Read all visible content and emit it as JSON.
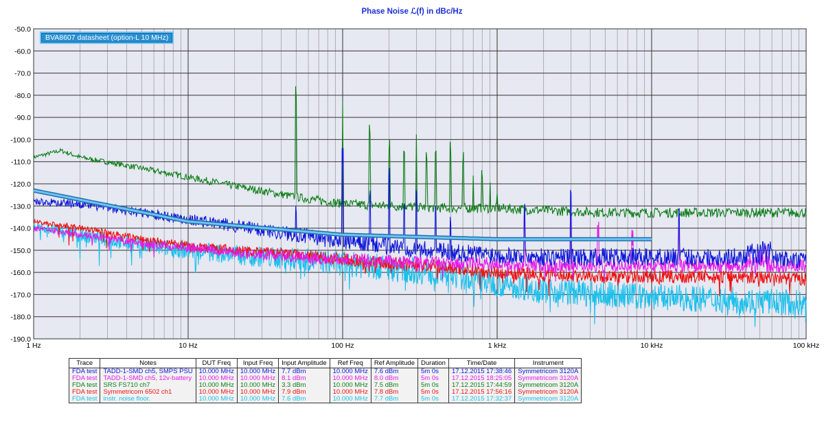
{
  "chart_data": {
    "type": "line",
    "title": "Phase Noise ℒ(f) in dBc/Hz",
    "x_scale": "log",
    "xlim": [
      1,
      100000
    ],
    "ylim": [
      -190,
      -50
    ],
    "grid": true,
    "x_ticks": [
      {
        "value": 1,
        "label": "1 Hz"
      },
      {
        "value": 10,
        "label": "10 Hz"
      },
      {
        "value": 100,
        "label": "100 Hz"
      },
      {
        "value": 1000,
        "label": "1 kHz"
      },
      {
        "value": 10000,
        "label": "10 kHz"
      },
      {
        "value": 100000,
        "label": "100 kHz"
      }
    ],
    "y_ticks": [
      -50,
      -60,
      -70,
      -80,
      -90,
      -100,
      -110,
      -120,
      -130,
      -140,
      -150,
      -160,
      -170,
      -180,
      -190
    ],
    "y_tick_labels": [
      "-50.0",
      "-60.0",
      "-70.0",
      "-80.0",
      "-90.0",
      "-100.0",
      "-110.0",
      "-120.0",
      "-130.0",
      "-140.0",
      "-150.0",
      "-160.0",
      "-170.0",
      "-180.0",
      "-190.0"
    ],
    "reference": {
      "name": "BVA8607 datasheet (option-L 10 MHz)",
      "color": "#3a9ad8",
      "x": [
        1,
        10,
        100,
        1000,
        10000
      ],
      "y": [
        -123,
        -137,
        -143,
        -145,
        -145
      ]
    },
    "series": [
      {
        "color": "#0f17d9",
        "x": [
          1,
          2,
          5,
          10,
          20,
          50,
          100,
          200,
          500,
          1000,
          2000,
          5000,
          10000,
          50000,
          100000
        ],
        "y": [
          -128,
          -129,
          -133,
          -136,
          -139,
          -143,
          -146,
          -148,
          -151,
          -152,
          -153,
          -153,
          -153,
          -153,
          -155
        ],
        "spurs": [
          [
            50,
            -135
          ],
          [
            100,
            -111
          ],
          [
            150,
            -128
          ],
          [
            200,
            -118
          ],
          [
            250,
            -133
          ],
          [
            300,
            -127
          ],
          [
            400,
            -134
          ],
          [
            500,
            -140
          ],
          [
            1500,
            -134
          ],
          [
            3000,
            -127
          ],
          [
            15000,
            -136
          ]
        ]
      },
      {
        "color": "#e61ae8",
        "x": [
          1,
          2,
          5,
          10,
          20,
          50,
          100,
          200,
          500,
          1000,
          2000,
          5000,
          10000,
          50000,
          100000
        ],
        "y": [
          -140,
          -143,
          -147,
          -149,
          -151,
          -153,
          -154,
          -155,
          -156,
          -156,
          -157,
          -157,
          -157,
          -157,
          -157
        ],
        "spurs": [
          [
            1500,
            -137
          ],
          [
            3000,
            -137
          ],
          [
            4500,
            -145
          ],
          [
            7500,
            -148
          ],
          [
            15000,
            -145
          ],
          [
            55000,
            -150
          ]
        ]
      },
      {
        "color": "#0a7d14",
        "x": [
          1,
          1.5,
          2,
          5,
          10,
          20,
          50,
          100,
          200,
          500,
          1000,
          2000,
          5000,
          10000,
          50000,
          100000
        ],
        "y": [
          -108,
          -105,
          -108,
          -113,
          -117,
          -121,
          -126,
          -129,
          -130,
          -131,
          -131,
          -132,
          -133,
          -133,
          -133,
          -133
        ],
        "spurs": [
          [
            50,
            -83
          ],
          [
            100,
            -83
          ],
          [
            150,
            -100
          ],
          [
            200,
            -107
          ],
          [
            250,
            -110
          ],
          [
            300,
            -98
          ],
          [
            350,
            -112
          ],
          [
            400,
            -110
          ],
          [
            500,
            -108
          ],
          [
            600,
            -113
          ],
          [
            700,
            -117
          ],
          [
            800,
            -120
          ],
          [
            900,
            -120
          ],
          [
            1000,
            -124
          ]
        ]
      },
      {
        "color": "#ee1111",
        "x": [
          1,
          2,
          5,
          10,
          20,
          50,
          100,
          200,
          500,
          1000,
          2000,
          5000,
          10000,
          50000,
          100000
        ],
        "y": [
          -137,
          -140,
          -145,
          -148,
          -150,
          -152,
          -154,
          -156,
          -158,
          -160,
          -161,
          -162,
          -162,
          -162,
          -163
        ],
        "spurs": []
      },
      {
        "color": "#1cc0ec",
        "x": [
          1,
          2,
          5,
          10,
          20,
          50,
          100,
          200,
          500,
          1000,
          2000,
          5000,
          10000,
          50000,
          100000
        ],
        "y": [
          -139,
          -143,
          -148,
          -150,
          -152,
          -154,
          -156,
          -158,
          -161,
          -165,
          -168,
          -170,
          -171,
          -173,
          -174
        ],
        "spurs": []
      }
    ]
  },
  "table": {
    "headers": [
      "Trace",
      "Notes",
      "DUT Freq",
      "Input Freq",
      "Input Amplitude",
      "Ref Freq",
      "Ref Amplitude",
      "Duration",
      "Time/Date",
      "Instrument"
    ],
    "rows": [
      {
        "color": "#0f17d9",
        "cells": [
          "FDA test",
          "TADD-1-SMD  ch5, SMPS PSU",
          "10.000 MHz",
          "10.000 MHz",
          "7.7 dBm",
          "10.000 MHz",
          "7.6 dBm",
          "5m 0s",
          "17.12.2015 17:38:46",
          "Symmetricom 3120A"
        ]
      },
      {
        "color": "#e61ae8",
        "cells": [
          "FDA test",
          "TADD-1-SMD ch5, 12v-battery",
          "10.000 MHz",
          "10.000 MHz",
          "8.1 dBm",
          "10.000 MHz",
          "8.0 dBm",
          "5m 0s",
          "17.12.2015 18:25:05",
          "Symmetricom 3120A"
        ]
      },
      {
        "color": "#0a7d14",
        "cells": [
          "FDA test",
          "SRS FS710 ch7",
          "10.000 MHz",
          "10.000 MHz",
          "3.3 dBm",
          "10.000 MHz",
          "7.5 dBm",
          "5m 0s",
          "17.12.2015 17:44:59",
          "Symmetricom 3120A"
        ]
      },
      {
        "color": "#ee1111",
        "cells": [
          "FDA test",
          "Symmetricom 6502 ch1",
          "10.000 MHz",
          "10.000 MHz",
          "7.9 dBm",
          "10.000 MHz",
          "7.8 dBm",
          "5m 0s",
          "17.12.2015 17:56:16",
          "Symmetricom 3120A"
        ]
      },
      {
        "color": "#1cc0ec",
        "cells": [
          "FDA test",
          "instr. noise floor.",
          "10.000 MHz",
          "10.000 MHz",
          "7.6 dBm",
          "10.000 MHz",
          "7.7 dBm",
          "5m 0s",
          "17.12.2015 17:32:37",
          "Symmetricom 3120A"
        ]
      }
    ]
  }
}
